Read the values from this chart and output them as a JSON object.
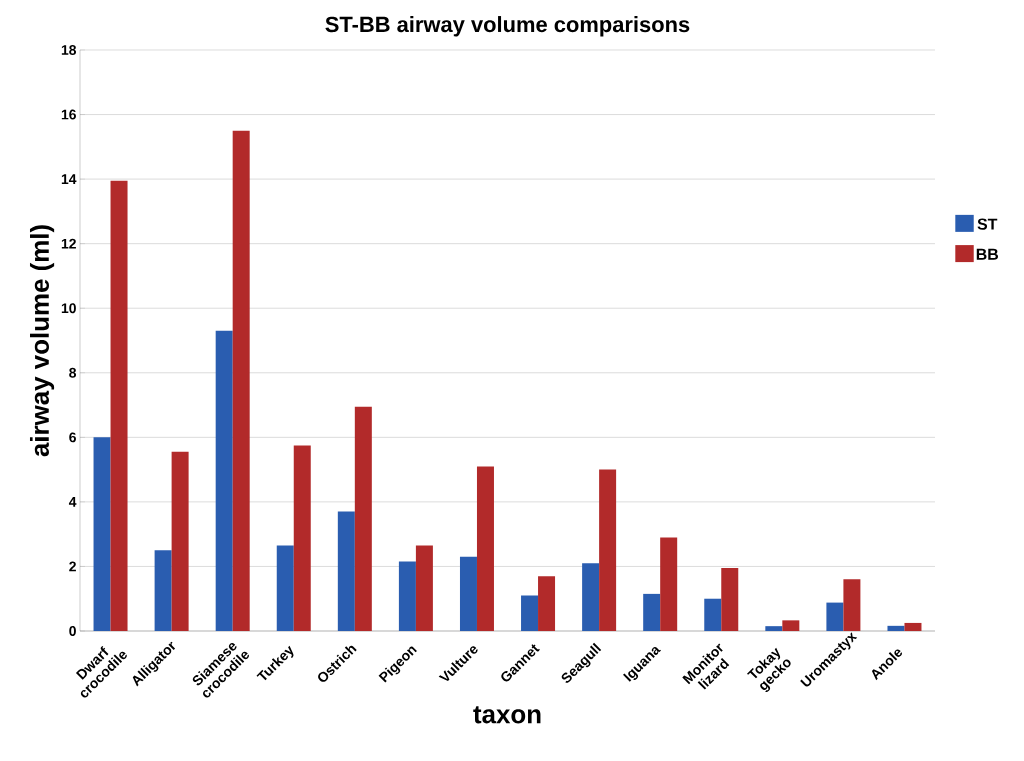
{
  "chart_data": {
    "type": "bar",
    "title": "ST-BB airway volume comparisons",
    "xlabel": "taxon",
    "ylabel": "airway volume (ml)",
    "categories": [
      "Dwarf crocodile",
      "Alligator",
      "Siamese crocodile",
      "Turkey",
      "Ostrich",
      "Pigeon",
      "Vulture",
      "Gannet",
      "Seagull",
      "Iguana",
      "Monitor lizard",
      "Tokay gecko",
      "Uromastyx",
      "Anole"
    ],
    "series": [
      {
        "name": "ST",
        "color": "#2a5db0",
        "values": [
          6.0,
          2.5,
          9.3,
          2.65,
          3.7,
          2.15,
          2.3,
          1.1,
          2.1,
          1.15,
          1.0,
          0.15,
          0.88,
          0.16
        ]
      },
      {
        "name": "BB",
        "color": "#b22a2a",
        "values": [
          13.95,
          5.55,
          15.5,
          5.75,
          6.95,
          2.65,
          5.1,
          1.7,
          5.0,
          2.9,
          1.95,
          0.33,
          1.6,
          0.25
        ]
      }
    ],
    "ylim": [
      0,
      18
    ],
    "yticks": [
      0,
      2,
      4,
      6,
      8,
      10,
      12,
      14,
      16,
      18
    ],
    "grid": "y",
    "legend": "right"
  }
}
